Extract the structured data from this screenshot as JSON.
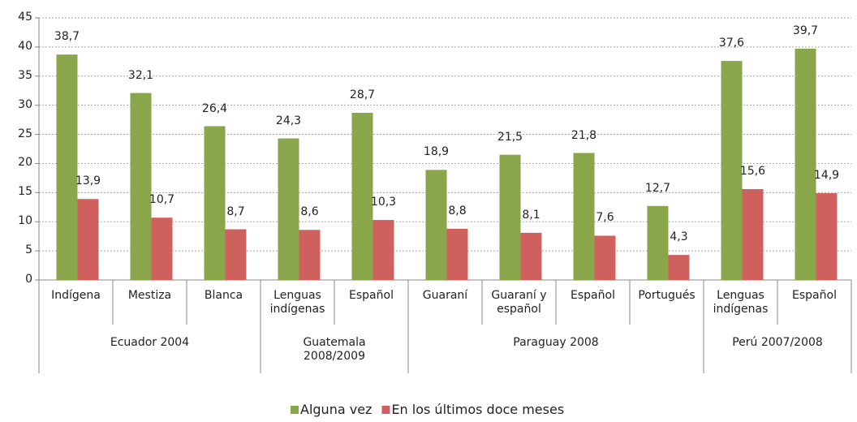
{
  "chart_data": {
    "type": "bar",
    "groups": [
      {
        "name": "Ecuador 2004",
        "categories": [
          "Indígena",
          "Mestiza",
          "Blanca"
        ]
      },
      {
        "name": "Guatemala 2008/2009",
        "categories": [
          "Lenguas indígenas",
          "Español"
        ]
      },
      {
        "name": "Paraguay 2008",
        "categories": [
          "Guaraní",
          "Guaraní y español",
          "Español",
          "Portugués"
        ]
      },
      {
        "name": "Perú 2007/2008",
        "categories": [
          "Lenguas indígenas",
          "Español"
        ]
      }
    ],
    "series": [
      {
        "name": "Alguna vez",
        "color": "#8aa64a",
        "values": [
          38.7,
          32.1,
          26.4,
          24.3,
          28.7,
          18.9,
          21.5,
          21.8,
          12.7,
          37.6,
          39.7
        ],
        "value_labels": [
          "38,7",
          "32,1",
          "26,4",
          "24,3",
          "28,7",
          "18,9",
          "21,5",
          "21,8",
          "12,7",
          "37,6",
          "39,7"
        ]
      },
      {
        "name": "En los últimos doce meses",
        "color": "#d0605e",
        "values": [
          13.9,
          10.7,
          8.7,
          8.6,
          10.3,
          8.8,
          8.1,
          7.6,
          4.3,
          15.6,
          14.9
        ],
        "value_labels": [
          "13,9",
          "10,7",
          "8,7",
          "8,6",
          "10,3",
          "8,8",
          "8,1",
          "7,6",
          "4,3",
          "15,6",
          "14,9"
        ]
      }
    ],
    "ylim": [
      0,
      45
    ],
    "yticks": [
      0,
      5,
      10,
      15,
      20,
      25,
      30,
      35,
      40,
      45
    ],
    "grid": true,
    "legend": "bottom"
  }
}
